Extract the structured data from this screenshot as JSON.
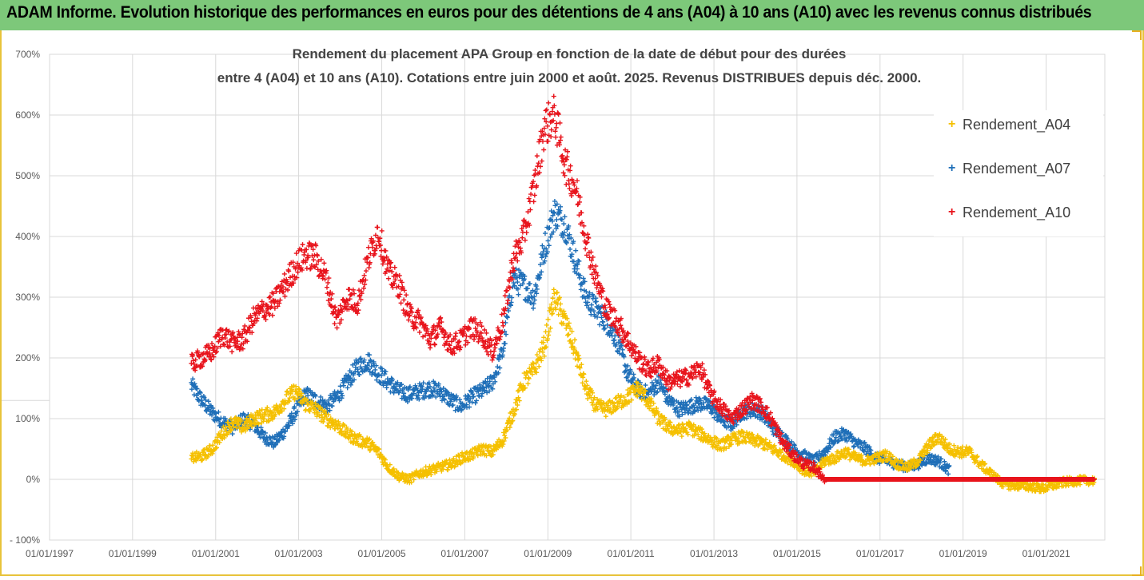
{
  "banner": {
    "title": "ADAM Informe. Evolution historique des performances en euros pour des détentions de 4 ans (A04) à 10 ans (A10) avec les revenus connus distribués",
    "background": "#7dc87a"
  },
  "chart_data": {
    "type": "scatter",
    "title_line1": "Rendement du placement APA Group en fonction de la date de début pour des durées",
    "title_line2": "entre 4 (A04) et 10 ans (A10). Cotations entre juin 2000 et août. 2025. Revenus DISTRIBUES depuis déc. 2000.",
    "xlabel": "",
    "ylabel": "",
    "xlim": [
      "1997-01-01",
      "2022-06-01"
    ],
    "ylim": [
      -100,
      700
    ],
    "x_ticks": [
      "01/01/1997",
      "01/01/1999",
      "01/01/2001",
      "01/01/2003",
      "01/01/2005",
      "01/01/2007",
      "01/01/2009",
      "01/01/2011",
      "01/01/2013",
      "01/01/2015",
      "01/01/2017",
      "01/01/2019",
      "01/01/2021"
    ],
    "y_ticks": [
      -100,
      0,
      100,
      200,
      300,
      400,
      500,
      600,
      700
    ],
    "y_tick_labels": [
      "- 100%",
      "0%",
      "100%",
      "200%",
      "300%",
      "400%",
      "500%",
      "600%",
      "700%"
    ],
    "grid": "vertical and horizontal, light grey",
    "legend_placement": "top-right",
    "marker": "+",
    "series": [
      {
        "name": "Rendement_A04",
        "color": "#f5c000",
        "points": [
          [
            "2000-06-01",
            35
          ],
          [
            "2000-09-01",
            38
          ],
          [
            "2000-12-01",
            50
          ],
          [
            "2001-03-01",
            75
          ],
          [
            "2001-06-01",
            95
          ],
          [
            "2001-09-01",
            85
          ],
          [
            "2001-12-01",
            100
          ],
          [
            "2002-03-01",
            105
          ],
          [
            "2002-06-01",
            110
          ],
          [
            "2002-09-01",
            130
          ],
          [
            "2002-12-01",
            145
          ],
          [
            "2003-03-01",
            125
          ],
          [
            "2003-06-01",
            115
          ],
          [
            "2003-09-01",
            100
          ],
          [
            "2003-12-01",
            90
          ],
          [
            "2004-03-01",
            75
          ],
          [
            "2004-06-01",
            65
          ],
          [
            "2004-09-01",
            60
          ],
          [
            "2004-12-01",
            45
          ],
          [
            "2005-03-01",
            20
          ],
          [
            "2005-06-01",
            5
          ],
          [
            "2005-09-01",
            0
          ],
          [
            "2005-12-01",
            10
          ],
          [
            "2006-03-01",
            15
          ],
          [
            "2006-06-01",
            20
          ],
          [
            "2006-09-01",
            25
          ],
          [
            "2006-12-01",
            35
          ],
          [
            "2007-03-01",
            40
          ],
          [
            "2007-06-01",
            50
          ],
          [
            "2007-09-01",
            45
          ],
          [
            "2007-12-01",
            65
          ],
          [
            "2008-03-01",
            110
          ],
          [
            "2008-06-01",
            160
          ],
          [
            "2008-09-01",
            180
          ],
          [
            "2008-12-01",
            220
          ],
          [
            "2009-03-01",
            300
          ],
          [
            "2009-06-01",
            260
          ],
          [
            "2009-09-01",
            210
          ],
          [
            "2009-12-01",
            150
          ],
          [
            "2010-03-01",
            120
          ],
          [
            "2010-06-01",
            115
          ],
          [
            "2010-09-01",
            125
          ],
          [
            "2010-12-01",
            135
          ],
          [
            "2011-03-01",
            150
          ],
          [
            "2011-06-01",
            130
          ],
          [
            "2011-09-01",
            100
          ],
          [
            "2011-12-01",
            85
          ],
          [
            "2012-03-01",
            80
          ],
          [
            "2012-06-01",
            85
          ],
          [
            "2012-09-01",
            75
          ],
          [
            "2012-12-01",
            65
          ],
          [
            "2013-03-01",
            55
          ],
          [
            "2013-06-01",
            65
          ],
          [
            "2013-09-01",
            70
          ],
          [
            "2013-12-01",
            65
          ],
          [
            "2014-03-01",
            60
          ],
          [
            "2014-06-01",
            50
          ],
          [
            "2014-09-01",
            40
          ],
          [
            "2014-12-01",
            30
          ],
          [
            "2015-03-01",
            15
          ],
          [
            "2015-06-01",
            10
          ],
          [
            "2015-09-01",
            30
          ],
          [
            "2015-12-01",
            35
          ],
          [
            "2016-03-01",
            45
          ],
          [
            "2016-06-01",
            35
          ],
          [
            "2016-09-01",
            30
          ],
          [
            "2016-12-01",
            35
          ],
          [
            "2017-03-01",
            40
          ],
          [
            "2017-06-01",
            25
          ],
          [
            "2017-09-01",
            20
          ],
          [
            "2017-12-01",
            30
          ],
          [
            "2018-03-01",
            55
          ],
          [
            "2018-06-01",
            70
          ],
          [
            "2018-09-01",
            50
          ],
          [
            "2018-12-01",
            45
          ],
          [
            "2019-03-01",
            45
          ],
          [
            "2019-06-01",
            25
          ],
          [
            "2019-09-01",
            10
          ],
          [
            "2019-12-01",
            -5
          ],
          [
            "2020-03-01",
            -10
          ],
          [
            "2020-06-01",
            -10
          ],
          [
            "2020-09-01",
            -12
          ],
          [
            "2020-12-01",
            -15
          ],
          [
            "2021-03-01",
            -10
          ],
          [
            "2021-06-01",
            -5
          ],
          [
            "2021-09-01",
            -3
          ],
          [
            "2021-12-01",
            -2
          ],
          [
            "2022-03-01",
            -2
          ]
        ]
      },
      {
        "name": "Rendement_A07",
        "color": "#1f6fb8",
        "points": [
          [
            "2000-06-01",
            155
          ],
          [
            "2000-09-01",
            130
          ],
          [
            "2000-12-01",
            110
          ],
          [
            "2001-03-01",
            95
          ],
          [
            "2001-06-01",
            85
          ],
          [
            "2001-09-01",
            100
          ],
          [
            "2001-12-01",
            90
          ],
          [
            "2002-03-01",
            70
          ],
          [
            "2002-06-01",
            60
          ],
          [
            "2002-09-01",
            80
          ],
          [
            "2002-12-01",
            110
          ],
          [
            "2003-03-01",
            140
          ],
          [
            "2003-06-01",
            130
          ],
          [
            "2003-09-01",
            120
          ],
          [
            "2003-12-01",
            135
          ],
          [
            "2004-03-01",
            160
          ],
          [
            "2004-06-01",
            185
          ],
          [
            "2004-09-01",
            195
          ],
          [
            "2004-12-01",
            175
          ],
          [
            "2005-03-01",
            160
          ],
          [
            "2005-06-01",
            145
          ],
          [
            "2005-09-01",
            140
          ],
          [
            "2005-12-01",
            145
          ],
          [
            "2006-03-01",
            150
          ],
          [
            "2006-06-01",
            145
          ],
          [
            "2006-09-01",
            130
          ],
          [
            "2006-12-01",
            120
          ],
          [
            "2007-03-01",
            135
          ],
          [
            "2007-06-01",
            145
          ],
          [
            "2007-09-01",
            160
          ],
          [
            "2007-12-01",
            210
          ],
          [
            "2008-03-01",
            330
          ],
          [
            "2008-06-01",
            320
          ],
          [
            "2008-09-01",
            300
          ],
          [
            "2008-12-01",
            380
          ],
          [
            "2009-03-01",
            440
          ],
          [
            "2009-06-01",
            420
          ],
          [
            "2009-09-01",
            360
          ],
          [
            "2009-12-01",
            300
          ],
          [
            "2010-03-01",
            280
          ],
          [
            "2010-06-01",
            260
          ],
          [
            "2010-09-01",
            230
          ],
          [
            "2010-12-01",
            175
          ],
          [
            "2011-03-01",
            150
          ],
          [
            "2011-06-01",
            140
          ],
          [
            "2011-09-01",
            160
          ],
          [
            "2011-12-01",
            130
          ],
          [
            "2012-03-01",
            115
          ],
          [
            "2012-06-01",
            120
          ],
          [
            "2012-09-01",
            125
          ],
          [
            "2012-12-01",
            120
          ],
          [
            "2013-03-01",
            100
          ],
          [
            "2013-06-01",
            90
          ],
          [
            "2013-09-01",
            110
          ],
          [
            "2013-12-01",
            115
          ],
          [
            "2014-03-01",
            110
          ],
          [
            "2014-06-01",
            85
          ],
          [
            "2014-09-01",
            70
          ],
          [
            "2014-12-01",
            50
          ],
          [
            "2015-03-01",
            40
          ],
          [
            "2015-06-01",
            30
          ],
          [
            "2015-09-01",
            45
          ],
          [
            "2015-12-01",
            70
          ],
          [
            "2016-03-01",
            75
          ],
          [
            "2016-06-01",
            60
          ],
          [
            "2016-09-01",
            50
          ],
          [
            "2016-12-01",
            35
          ],
          [
            "2017-03-01",
            30
          ],
          [
            "2017-06-01",
            25
          ],
          [
            "2017-09-01",
            20
          ],
          [
            "2017-12-01",
            25
          ],
          [
            "2018-03-01",
            35
          ],
          [
            "2018-06-01",
            30
          ],
          [
            "2018-09-01",
            15
          ]
        ]
      },
      {
        "name": "Rendement_A10",
        "color": "#e8141c",
        "points": [
          [
            "2000-06-01",
            190
          ],
          [
            "2000-09-01",
            200
          ],
          [
            "2000-12-01",
            210
          ],
          [
            "2001-03-01",
            240
          ],
          [
            "2001-06-01",
            225
          ],
          [
            "2001-09-01",
            230
          ],
          [
            "2001-12-01",
            265
          ],
          [
            "2002-03-01",
            280
          ],
          [
            "2002-06-01",
            290
          ],
          [
            "2002-09-01",
            320
          ],
          [
            "2002-12-01",
            350
          ],
          [
            "2003-03-01",
            370
          ],
          [
            "2003-06-01",
            365
          ],
          [
            "2003-09-01",
            330
          ],
          [
            "2003-12-01",
            260
          ],
          [
            "2004-03-01",
            300
          ],
          [
            "2004-06-01",
            290
          ],
          [
            "2004-09-01",
            360
          ],
          [
            "2004-12-01",
            410
          ],
          [
            "2005-03-01",
            340
          ],
          [
            "2005-06-01",
            320
          ],
          [
            "2005-09-01",
            270
          ],
          [
            "2005-12-01",
            260
          ],
          [
            "2006-03-01",
            230
          ],
          [
            "2006-06-01",
            250
          ],
          [
            "2006-09-01",
            220
          ],
          [
            "2006-12-01",
            230
          ],
          [
            "2007-03-01",
            250
          ],
          [
            "2007-06-01",
            240
          ],
          [
            "2007-09-01",
            210
          ],
          [
            "2007-12-01",
            260
          ],
          [
            "2008-03-01",
            360
          ],
          [
            "2008-06-01",
            400
          ],
          [
            "2008-09-01",
            480
          ],
          [
            "2008-12-01",
            580
          ],
          [
            "2009-03-01",
            600
          ],
          [
            "2009-06-01",
            520
          ],
          [
            "2009-09-01",
            480
          ],
          [
            "2009-12-01",
            400
          ],
          [
            "2010-03-01",
            330
          ],
          [
            "2010-06-01",
            280
          ],
          [
            "2010-09-01",
            260
          ],
          [
            "2010-12-01",
            230
          ],
          [
            "2011-03-01",
            200
          ],
          [
            "2011-06-01",
            180
          ],
          [
            "2011-09-01",
            190
          ],
          [
            "2011-12-01",
            160
          ],
          [
            "2012-03-01",
            165
          ],
          [
            "2012-06-01",
            170
          ],
          [
            "2012-09-01",
            185
          ],
          [
            "2012-12-01",
            140
          ],
          [
            "2013-03-01",
            120
          ],
          [
            "2013-06-01",
            100
          ],
          [
            "2013-09-01",
            115
          ],
          [
            "2013-12-01",
            130
          ],
          [
            "2014-03-01",
            120
          ],
          [
            "2014-06-01",
            95
          ],
          [
            "2014-09-01",
            60
          ],
          [
            "2014-12-01",
            40
          ],
          [
            "2015-03-01",
            25
          ],
          [
            "2015-06-01",
            20
          ],
          [
            "2015-09-01",
            0
          ],
          [
            "2016-06-01",
            0
          ],
          [
            "2017-06-01",
            0
          ],
          [
            "2018-06-01",
            0
          ],
          [
            "2019-06-01",
            0
          ],
          [
            "2020-06-01",
            0
          ],
          [
            "2021-06-01",
            0
          ],
          [
            "2022-03-01",
            0
          ]
        ]
      }
    ]
  }
}
